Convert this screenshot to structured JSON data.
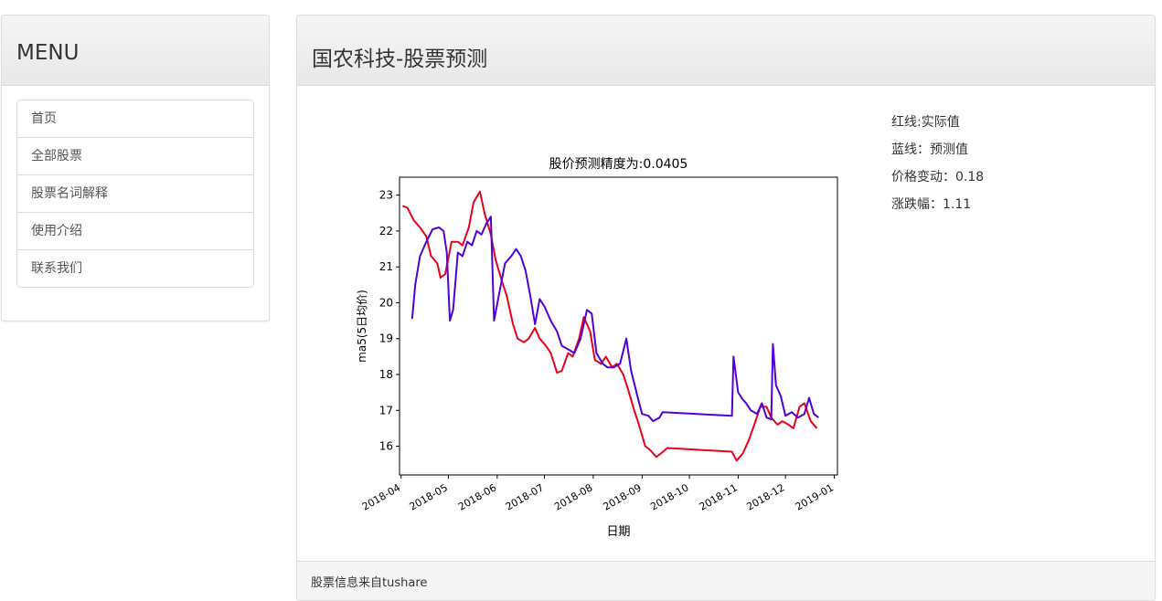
{
  "menu": {
    "title": "MENU",
    "items": [
      {
        "label": "首页"
      },
      {
        "label": "全部股票"
      },
      {
        "label": "股票名词解释"
      },
      {
        "label": "使用介绍"
      },
      {
        "label": "联系我们"
      }
    ]
  },
  "main": {
    "title": "国农科技-股票预测",
    "info": {
      "red_line": "红线:实际值",
      "blue_line": "蓝线：预测值",
      "price_change_label": "价格变动：",
      "price_change": "0.18",
      "pct_change_label": "涨跌幅：",
      "pct_change": "1.11"
    },
    "footer": "股票信息来自tushare"
  },
  "chart_data": {
    "type": "line",
    "title": "股价预测精度为:0.0405",
    "xlabel": "日期",
    "ylabel": "ma5(5日均价)",
    "xlim": [
      "2018-03-31",
      "2019-01-03"
    ],
    "ylim": [
      15.2,
      23.5
    ],
    "xticks": [
      "2018-04",
      "2018-05",
      "2018-06",
      "2018-07",
      "2018-08",
      "2018-09",
      "2018-10",
      "2018-11",
      "2018-12",
      "2019-01"
    ],
    "yticks": [
      16,
      17,
      18,
      19,
      20,
      21,
      22,
      23
    ],
    "grid": false,
    "series": [
      {
        "color": "#e8001c",
        "points": [
          [
            "2018-04-02",
            22.7
          ],
          [
            "2018-04-05",
            22.65
          ],
          [
            "2018-04-09",
            22.3
          ],
          [
            "2018-04-13",
            22.1
          ],
          [
            "2018-04-17",
            21.85
          ],
          [
            "2018-04-20",
            21.3
          ],
          [
            "2018-04-24",
            21.1
          ],
          [
            "2018-04-26",
            20.7
          ],
          [
            "2018-04-29",
            20.8
          ],
          [
            "2018-05-03",
            21.7
          ],
          [
            "2018-05-07",
            21.7
          ],
          [
            "2018-05-10",
            21.6
          ],
          [
            "2018-05-14",
            22.1
          ],
          [
            "2018-05-17",
            22.8
          ],
          [
            "2018-05-21",
            23.1
          ],
          [
            "2018-05-24",
            22.5
          ],
          [
            "2018-05-28",
            21.9
          ],
          [
            "2018-05-31",
            21.2
          ],
          [
            "2018-06-04",
            20.6
          ],
          [
            "2018-06-07",
            20.2
          ],
          [
            "2018-06-11",
            19.4
          ],
          [
            "2018-06-14",
            19.0
          ],
          [
            "2018-06-18",
            18.9
          ],
          [
            "2018-06-21",
            19.0
          ],
          [
            "2018-06-25",
            19.3
          ],
          [
            "2018-06-28",
            19.0
          ],
          [
            "2018-07-02",
            18.8
          ],
          [
            "2018-07-05",
            18.6
          ],
          [
            "2018-07-09",
            18.05
          ],
          [
            "2018-07-12",
            18.1
          ],
          [
            "2018-07-16",
            18.6
          ],
          [
            "2018-07-19",
            18.5
          ],
          [
            "2018-07-23",
            19.0
          ],
          [
            "2018-07-26",
            19.6
          ],
          [
            "2018-07-30",
            19.2
          ],
          [
            "2018-08-02",
            18.4
          ],
          [
            "2018-08-06",
            18.3
          ],
          [
            "2018-08-09",
            18.5
          ],
          [
            "2018-08-13",
            18.2
          ],
          [
            "2018-08-16",
            18.3
          ],
          [
            "2018-08-20",
            18.0
          ],
          [
            "2018-08-23",
            17.6
          ],
          [
            "2018-08-27",
            17.0
          ],
          [
            "2018-08-30",
            16.6
          ],
          [
            "2018-09-03",
            16.0
          ],
          [
            "2018-09-06",
            15.9
          ],
          [
            "2018-09-10",
            15.7
          ],
          [
            "2018-09-13",
            15.8
          ],
          [
            "2018-09-17",
            15.95
          ],
          [
            "2018-10-28",
            15.85
          ],
          [
            "2018-10-31",
            15.6
          ],
          [
            "2018-11-04",
            15.8
          ],
          [
            "2018-11-08",
            16.2
          ],
          [
            "2018-11-12",
            16.7
          ],
          [
            "2018-11-15",
            17.1
          ],
          [
            "2018-11-19",
            17.1
          ],
          [
            "2018-11-22",
            16.8
          ],
          [
            "2018-11-26",
            16.6
          ],
          [
            "2018-11-29",
            16.7
          ],
          [
            "2018-12-03",
            16.6
          ],
          [
            "2018-12-06",
            16.5
          ],
          [
            "2018-12-10",
            17.1
          ],
          [
            "2018-12-13",
            17.2
          ],
          [
            "2018-12-17",
            16.7
          ],
          [
            "2018-12-21",
            16.5
          ]
        ]
      },
      {
        "color": "#5000d8",
        "points": [
          [
            "2018-04-08",
            19.55
          ],
          [
            "2018-04-10",
            20.5
          ],
          [
            "2018-04-13",
            21.3
          ],
          [
            "2018-04-17",
            21.7
          ],
          [
            "2018-04-21",
            22.05
          ],
          [
            "2018-04-25",
            22.1
          ],
          [
            "2018-04-28",
            22.0
          ],
          [
            "2018-04-30",
            21.4
          ],
          [
            "2018-05-02",
            19.5
          ],
          [
            "2018-05-04",
            19.8
          ],
          [
            "2018-05-07",
            21.4
          ],
          [
            "2018-05-10",
            21.3
          ],
          [
            "2018-05-13",
            21.7
          ],
          [
            "2018-05-16",
            21.6
          ],
          [
            "2018-05-19",
            22.0
          ],
          [
            "2018-05-22",
            21.9
          ],
          [
            "2018-05-25",
            22.2
          ],
          [
            "2018-05-28",
            22.4
          ],
          [
            "2018-05-30",
            19.5
          ],
          [
            "2018-06-02",
            20.2
          ],
          [
            "2018-06-06",
            21.1
          ],
          [
            "2018-06-10",
            21.3
          ],
          [
            "2018-06-13",
            21.5
          ],
          [
            "2018-06-16",
            21.3
          ],
          [
            "2018-06-19",
            20.9
          ],
          [
            "2018-06-22",
            20.2
          ],
          [
            "2018-06-25",
            19.4
          ],
          [
            "2018-06-28",
            20.1
          ],
          [
            "2018-07-01",
            19.9
          ],
          [
            "2018-07-05",
            19.5
          ],
          [
            "2018-07-09",
            19.2
          ],
          [
            "2018-07-12",
            18.8
          ],
          [
            "2018-07-16",
            18.7
          ],
          [
            "2018-07-20",
            18.6
          ],
          [
            "2018-07-24",
            19.0
          ],
          [
            "2018-07-28",
            19.8
          ],
          [
            "2018-07-31",
            19.7
          ],
          [
            "2018-08-03",
            18.6
          ],
          [
            "2018-08-07",
            18.3
          ],
          [
            "2018-08-10",
            18.2
          ],
          [
            "2018-08-14",
            18.2
          ],
          [
            "2018-08-18",
            18.3
          ],
          [
            "2018-08-22",
            19.0
          ],
          [
            "2018-08-25",
            18.1
          ],
          [
            "2018-08-29",
            17.4
          ],
          [
            "2018-09-01",
            16.9
          ],
          [
            "2018-09-05",
            16.85
          ],
          [
            "2018-09-08",
            16.7
          ],
          [
            "2018-09-12",
            16.8
          ],
          [
            "2018-09-14",
            16.95
          ],
          [
            "2018-10-28",
            16.85
          ],
          [
            "2018-10-29",
            18.5
          ],
          [
            "2018-11-01",
            17.5
          ],
          [
            "2018-11-04",
            17.3
          ],
          [
            "2018-11-06",
            17.2
          ],
          [
            "2018-11-09",
            17.0
          ],
          [
            "2018-11-13",
            16.9
          ],
          [
            "2018-11-16",
            17.2
          ],
          [
            "2018-11-19",
            16.8
          ],
          [
            "2018-11-22",
            16.75
          ],
          [
            "2018-11-23",
            18.85
          ],
          [
            "2018-11-25",
            17.7
          ],
          [
            "2018-11-28",
            17.4
          ],
          [
            "2018-12-01",
            16.85
          ],
          [
            "2018-12-05",
            16.95
          ],
          [
            "2018-12-09",
            16.8
          ],
          [
            "2018-12-13",
            16.9
          ],
          [
            "2018-12-16",
            17.35
          ],
          [
            "2018-12-19",
            16.9
          ],
          [
            "2018-12-22",
            16.8
          ]
        ]
      }
    ]
  }
}
